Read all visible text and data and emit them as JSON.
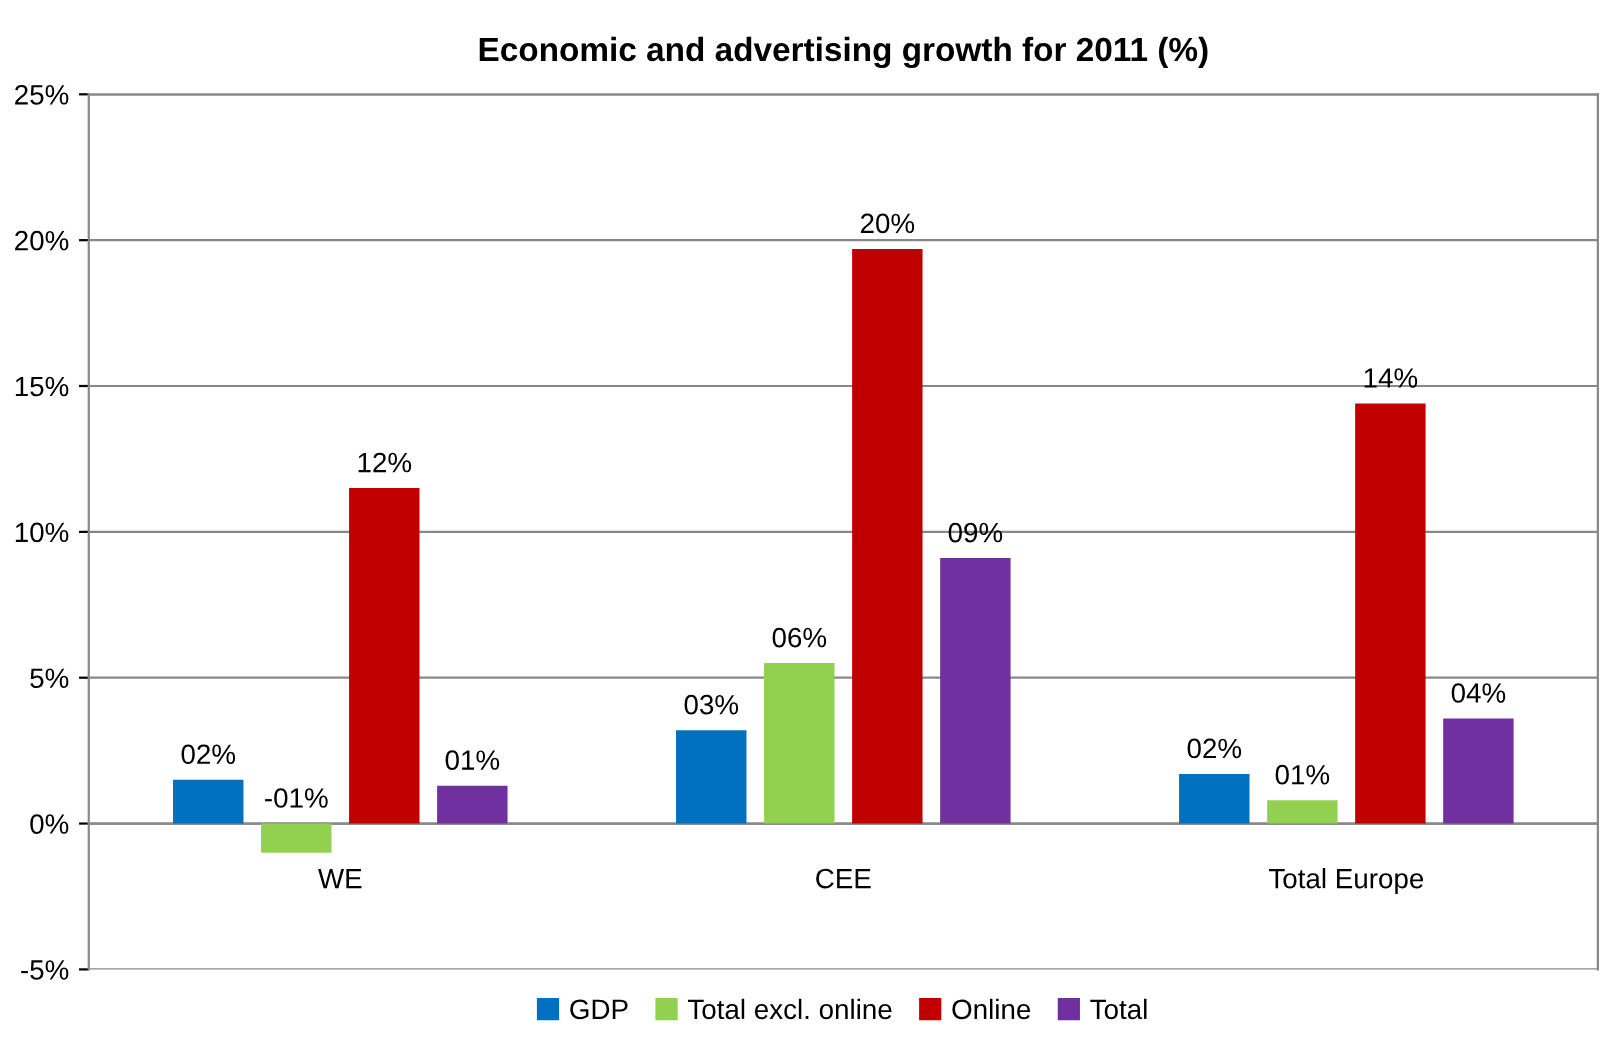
{
  "chart_data": {
    "type": "bar",
    "title": "Economic and advertising growth for 2011 (%)",
    "categories": [
      "WE",
      "CEE",
      "Total Europe"
    ],
    "series": [
      {
        "name": "GDP",
        "color": "#0070c0",
        "values": [
          1.5,
          3.2,
          1.7
        ],
        "value_labels": [
          "02%",
          "03%",
          "02%"
        ]
      },
      {
        "name": "Total excl. online",
        "color": "#92d050",
        "values": [
          -1.0,
          5.5,
          0.8
        ],
        "value_labels": [
          "-01%",
          "06%",
          "01%"
        ]
      },
      {
        "name": "Online",
        "color": "#c00000",
        "values": [
          11.5,
          19.7,
          14.4
        ],
        "value_labels": [
          "12%",
          "20%",
          "14%"
        ]
      },
      {
        "name": "Total",
        "color": "#7030a0",
        "values": [
          1.3,
          9.1,
          3.6
        ],
        "value_labels": [
          "01%",
          "09%",
          "04%"
        ]
      }
    ],
    "ylim": [
      -5,
      25
    ],
    "yticks": [
      {
        "value": -5,
        "label": "-5%"
      },
      {
        "value": 0,
        "label": "0%"
      },
      {
        "value": 5,
        "label": "5%"
      },
      {
        "value": 10,
        "label": "10%"
      },
      {
        "value": 15,
        "label": "15%"
      },
      {
        "value": 20,
        "label": "20%"
      },
      {
        "value": 25,
        "label": "25%"
      }
    ],
    "grid": "y",
    "legend": "bottom"
  }
}
